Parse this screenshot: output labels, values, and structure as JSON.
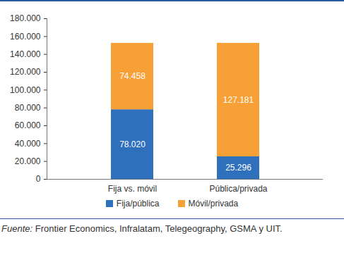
{
  "chart_data": {
    "type": "bar",
    "stacked": true,
    "data_labels": true,
    "grid": false,
    "legend": "bottom",
    "categories": [
      "Fija vs. móvil",
      "Pública/privada"
    ],
    "series": [
      {
        "name": "Fija/pública",
        "color": "#2f70bd",
        "values": [
          78020,
          25296
        ],
        "value_labels": [
          "78.020",
          "25.296"
        ]
      },
      {
        "name": "Móvil/privada",
        "color": "#f7a035",
        "values": [
          74458,
          127181
        ],
        "value_labels": [
          "74.458",
          "127.181"
        ]
      }
    ],
    "ylim": [
      0,
      180000
    ],
    "yticks": [
      0,
      {
        "value": 20000,
        "label": "20.000"
      },
      {
        "value": 40000,
        "label": "40.000"
      },
      {
        "value": 60000,
        "label": "60.000"
      },
      {
        "value": 80000,
        "label": "80.000"
      },
      {
        "value": 100000,
        "label": "100.000"
      },
      {
        "value": 120000,
        "label": "120.000"
      },
      {
        "value": 140000,
        "label": "140.000"
      },
      {
        "value": 160000,
        "label": "160.000"
      },
      {
        "value": 180000,
        "label": "180.000"
      }
    ],
    "caption": "Fuente: Frontier Economics, Infralatam, Telegeography, GSMA y UIT."
  }
}
